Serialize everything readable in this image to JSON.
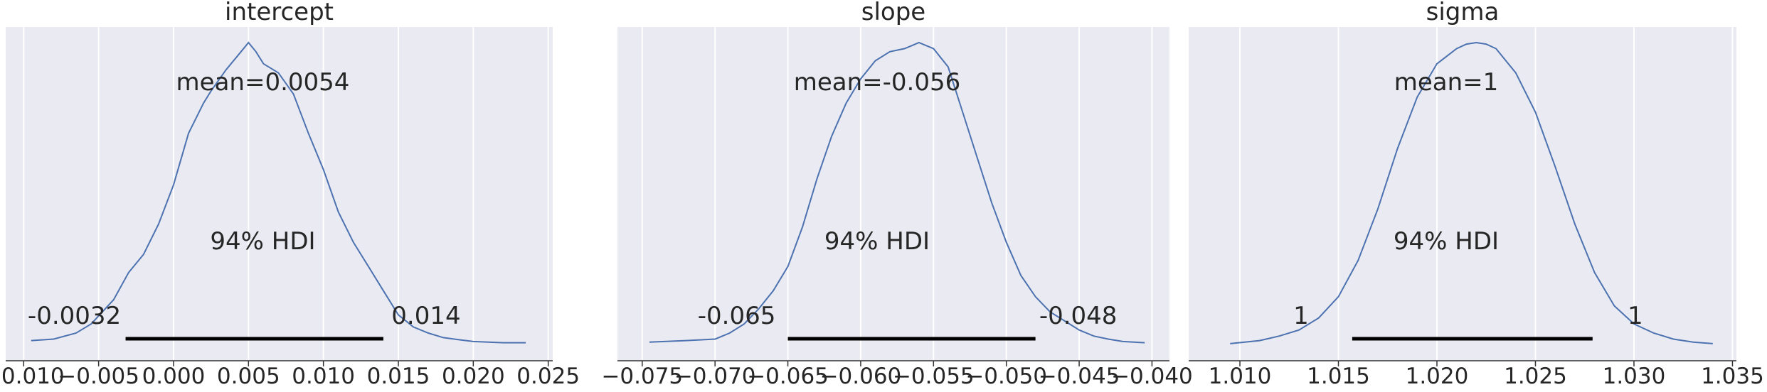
{
  "chart_data": [
    {
      "type": "area",
      "title": "intercept",
      "xlim": [
        -0.0112,
        0.0253
      ],
      "ticks": [
        -0.01,
        -0.005,
        0.0,
        0.005,
        0.01,
        0.015,
        0.02,
        0.025
      ],
      "tick_labels": [
        "−0.010",
        "−0.005",
        "0.000",
        "0.005",
        "0.010",
        "0.015",
        "0.020",
        "0.025"
      ],
      "mean_label": "mean=0.0054",
      "hdi_label": "94% HDI",
      "hdi": [
        -0.0032,
        0.014
      ],
      "hdi_low_label": "-0.0032",
      "hdi_high_label": "0.014",
      "density": {
        "x": [
          -0.0095,
          -0.008,
          -0.0065,
          -0.0055,
          -0.004,
          -0.003,
          -0.002,
          -0.001,
          0.0,
          0.001,
          0.002,
          0.0025,
          0.0035,
          0.0045,
          0.005,
          0.0055,
          0.006,
          0.007,
          0.008,
          0.009,
          0.01,
          0.011,
          0.012,
          0.013,
          0.014,
          0.015,
          0.016,
          0.017,
          0.018,
          0.019,
          0.02,
          0.021,
          0.022,
          0.0235
        ],
        "y": [
          0.015,
          0.02,
          0.04,
          0.07,
          0.15,
          0.24,
          0.3,
          0.4,
          0.53,
          0.7,
          0.8,
          0.84,
          0.91,
          0.97,
          1.0,
          0.97,
          0.93,
          0.9,
          0.83,
          0.7,
          0.58,
          0.44,
          0.34,
          0.26,
          0.18,
          0.1,
          0.06,
          0.04,
          0.025,
          0.018,
          0.012,
          0.01,
          0.008,
          0.008
        ]
      }
    },
    {
      "type": "area",
      "title": "slope",
      "xlim": [
        -0.0767,
        -0.0388
      ],
      "ticks": [
        -0.075,
        -0.07,
        -0.065,
        -0.06,
        -0.055,
        -0.05,
        -0.045,
        -0.04
      ],
      "tick_labels": [
        "−0.075",
        "−0.070",
        "−0.065",
        "−0.060",
        "−0.055",
        "−0.050",
        "−0.045",
        "−0.040"
      ],
      "mean_label": "mean=-0.056",
      "hdi_label": "94% HDI",
      "hdi": [
        -0.065,
        -0.048
      ],
      "hdi_low_label": "-0.065",
      "hdi_high_label": "-0.048",
      "density": {
        "x": [
          -0.0745,
          -0.072,
          -0.07,
          -0.069,
          -0.068,
          -0.067,
          -0.066,
          -0.065,
          -0.064,
          -0.063,
          -0.062,
          -0.061,
          -0.06,
          -0.059,
          -0.058,
          -0.057,
          -0.0565,
          -0.056,
          -0.055,
          -0.054,
          -0.053,
          -0.052,
          -0.051,
          -0.05,
          -0.049,
          -0.048,
          -0.047,
          -0.046,
          -0.045,
          -0.044,
          -0.043,
          -0.042,
          -0.0405
        ],
        "y": [
          0.01,
          0.015,
          0.02,
          0.04,
          0.07,
          0.12,
          0.18,
          0.26,
          0.39,
          0.55,
          0.69,
          0.8,
          0.88,
          0.94,
          0.97,
          0.98,
          0.99,
          1.0,
          0.98,
          0.92,
          0.77,
          0.62,
          0.47,
          0.34,
          0.23,
          0.16,
          0.11,
          0.08,
          0.05,
          0.03,
          0.02,
          0.012,
          0.008
        ]
      }
    },
    {
      "type": "area",
      "title": "sigma",
      "xlim": [
        1.0074,
        1.0352
      ],
      "ticks": [
        1.01,
        1.015,
        1.02,
        1.025,
        1.03,
        1.035
      ],
      "tick_labels": [
        "1.010",
        "1.015",
        "1.020",
        "1.025",
        "1.030",
        "1.035"
      ],
      "mean_label": "mean=1",
      "hdi_label": "94% HDI",
      "hdi": [
        1.0157,
        1.0279
      ],
      "hdi_low_label": "1",
      "hdi_high_label": "1",
      "density": {
        "x": [
          1.0095,
          1.011,
          1.012,
          1.013,
          1.014,
          1.015,
          1.016,
          1.017,
          1.018,
          1.019,
          1.02,
          1.021,
          1.0215,
          1.022,
          1.0225,
          1.023,
          1.024,
          1.025,
          1.026,
          1.027,
          1.028,
          1.029,
          1.03,
          1.031,
          1.032,
          1.033,
          1.034
        ],
        "y": [
          0.005,
          0.015,
          0.03,
          0.05,
          0.09,
          0.16,
          0.28,
          0.45,
          0.65,
          0.82,
          0.93,
          0.98,
          0.995,
          1.0,
          0.995,
          0.98,
          0.9,
          0.77,
          0.59,
          0.4,
          0.24,
          0.13,
          0.07,
          0.04,
          0.02,
          0.01,
          0.005
        ]
      }
    }
  ],
  "colors": {
    "background": "#eaeaf2",
    "grid": "#ffffff",
    "line": "#4c72b0",
    "hdi_bar": "#000000",
    "text": "#262626"
  }
}
